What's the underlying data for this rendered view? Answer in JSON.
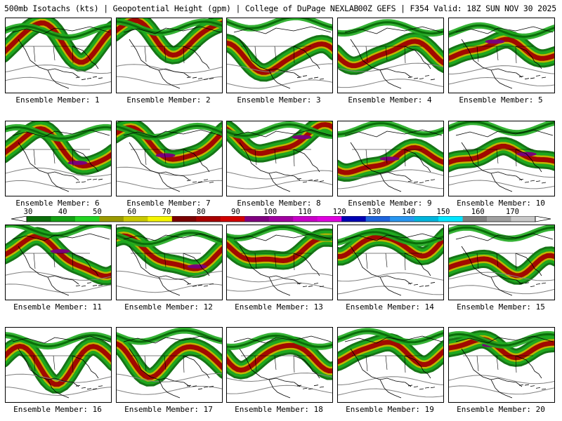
{
  "header": {
    "title_left": "500mb Isotachs (kts) | Geopotential Height (gpm) | College of DuPage NEXLAB",
    "title_right": "00Z GEFS | F354 Valid: 18Z SUN NOV 30 2025"
  },
  "members": [
    {
      "label": "Ensemble Member: 1"
    },
    {
      "label": "Ensemble Member: 2"
    },
    {
      "label": "Ensemble Member: 3"
    },
    {
      "label": "Ensemble Member: 4"
    },
    {
      "label": "Ensemble Member: 5"
    },
    {
      "label": "Ensemble Member: 6"
    },
    {
      "label": "Ensemble Member: 7"
    },
    {
      "label": "Ensemble Member: 8"
    },
    {
      "label": "Ensemble Member: 9"
    },
    {
      "label": "Ensemble Member: 10"
    },
    {
      "label": "Ensemble Member: 11"
    },
    {
      "label": "Ensemble Member: 12"
    },
    {
      "label": "Ensemble Member: 13"
    },
    {
      "label": "Ensemble Member: 14"
    },
    {
      "label": "Ensemble Member: 15"
    },
    {
      "label": "Ensemble Member: 16"
    },
    {
      "label": "Ensemble Member: 17"
    },
    {
      "label": "Ensemble Member: 18"
    },
    {
      "label": "Ensemble Member: 19"
    },
    {
      "label": "Ensemble Member: 20"
    }
  ],
  "colorbar": {
    "ticks": [
      "30",
      "40",
      "50",
      "60",
      "70",
      "80",
      "90",
      "100",
      "110",
      "120",
      "130",
      "140",
      "150",
      "160",
      "170"
    ],
    "colors": [
      "#0a6e0a",
      "#13a013",
      "#22d322",
      "#9a9a00",
      "#c8c800",
      "#f5f500",
      "#7a0000",
      "#a80000",
      "#d20000",
      "#800080",
      "#a000a0",
      "#c800c8",
      "#e000e0",
      "#0000b4",
      "#1e64dc",
      "#2896f0",
      "#00b4dc",
      "#00e6ff",
      "#808080",
      "#a0a0a0",
      "#c8c8c8"
    ]
  },
  "legend_colors": {
    "jet_green_dark": "#0a6e0a",
    "jet_green": "#1faa1f",
    "jet_yellow": "#c8b400",
    "jet_red": "#a00000",
    "jet_purple": "#7a007a",
    "map_lines": "#000000",
    "height_contours": "#808080"
  }
}
